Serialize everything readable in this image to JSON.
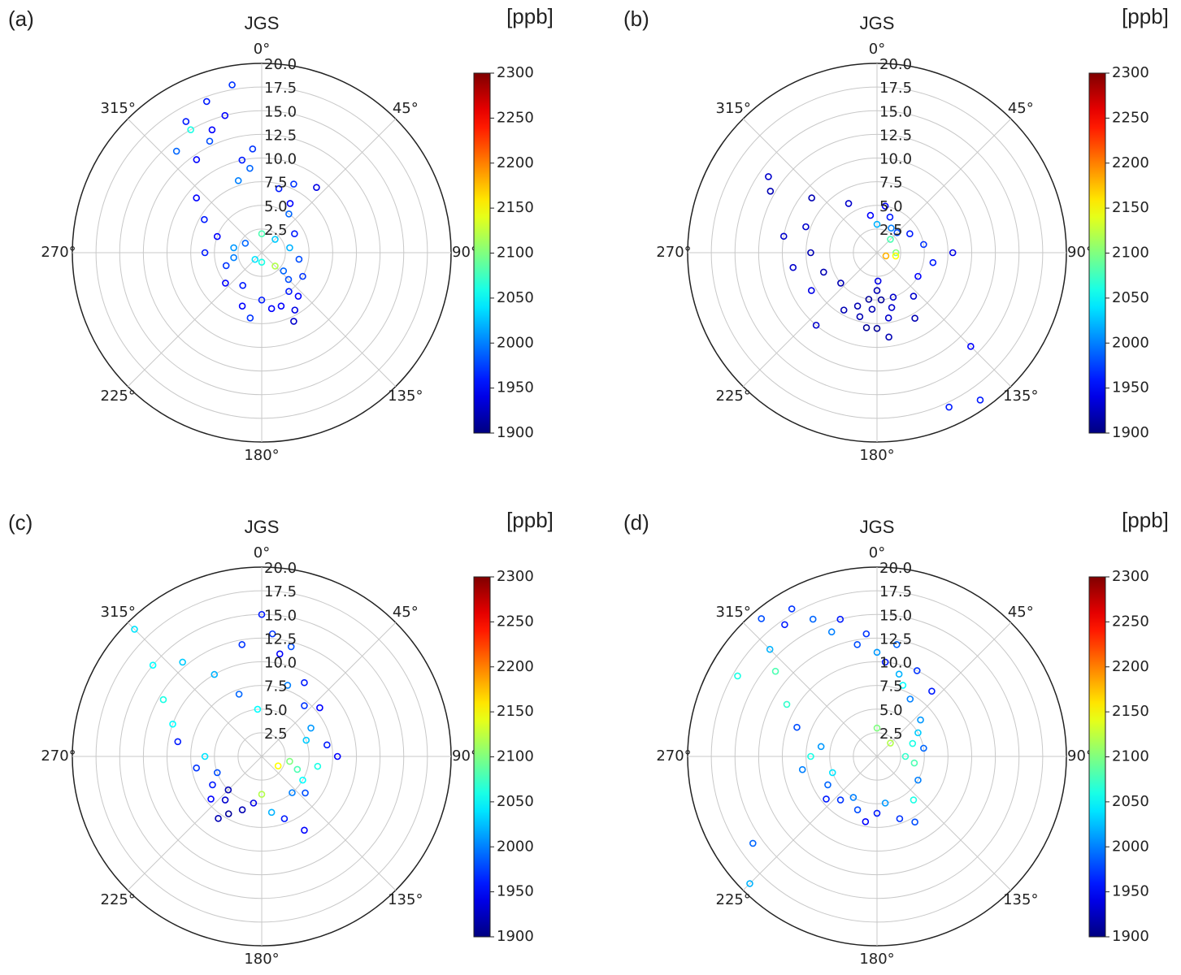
{
  "chart_data": [
    {
      "type": "polar_scatter",
      "panel_label": "(a)",
      "title": "JGS",
      "colorbar_label": "[ppb]",
      "colormap": "jet",
      "rlim": [
        0,
        20
      ],
      "rticks": [
        2.5,
        {
          "value": 5,
          "label": "5.0"
        },
        7.5,
        {
          "value": 10,
          "label": "10.0"
        },
        12.5,
        {
          "value": 15,
          "label": "15.0"
        },
        17.5,
        {
          "value": 20,
          "label": "20.0"
        }
      ],
      "thetaticks": [
        {
          "value": 0,
          "label": "0°"
        },
        {
          "value": 45,
          "label": "45°"
        },
        {
          "value": 90,
          "label": "90°"
        },
        {
          "value": 135,
          "label": "135°"
        },
        {
          "value": 180,
          "label": "180°"
        },
        {
          "value": 225,
          "label": "225°"
        },
        {
          "value": 270,
          "label": "270°"
        },
        {
          "value": 315,
          "label": "315°"
        }
      ],
      "clim": [
        1900,
        2300
      ],
      "cticks": [
        1900,
        1950,
        2000,
        2050,
        2100,
        2150,
        2200,
        2250,
        2300
      ],
      "theta": [
        340,
        345,
        350,
        335,
        330,
        320,
        325,
        355,
        352,
        348,
        342,
        338,
        15,
        25,
        30,
        40,
        35,
        60,
        80,
        100,
        120,
        140,
        150,
        145,
        155,
        160,
        135,
        130,
        170,
        180,
        190,
        200,
        210,
        230,
        250,
        270,
        290,
        300,
        310,
        280,
        260,
        0,
        45,
        135,
        180,
        225,
        300,
        330
      ],
      "r": [
        17,
        15,
        18,
        13,
        16,
        14,
        12,
        11,
        9,
        10,
        8,
        14,
        7,
        8,
        6,
        9,
        5,
        4,
        3,
        4,
        5,
        6,
        7,
        5,
        8,
        6,
        4,
        3,
        6,
        5,
        7,
        6,
        4,
        5,
        4,
        6,
        5,
        7,
        9,
        3,
        3,
        2,
        2,
        2,
        1,
        1,
        2,
        15
      ],
      "values": [
        1960,
        1950,
        1970,
        1980,
        1960,
        1990,
        1950,
        1970,
        1990,
        1960,
        2000,
        1950,
        1960,
        1970,
        1950,
        1940,
        1990,
        1960,
        2020,
        1980,
        1970,
        1950,
        1940,
        1960,
        1930,
        1950,
        1980,
        1990,
        1950,
        1960,
        1970,
        1950,
        1960,
        1950,
        1970,
        1960,
        1950,
        1960,
        1950,
        2010,
        2000,
        2080,
        2030,
        2120,
        2060,
        2040,
        1990,
        2060
      ]
    },
    {
      "type": "polar_scatter",
      "panel_label": "(b)",
      "title": "JGS",
      "colorbar_label": "[ppb]",
      "colormap": "jet",
      "rlim": [
        0,
        20
      ],
      "rticks": [
        2.5,
        {
          "value": 5,
          "label": "5.0"
        },
        7.5,
        {
          "value": 10,
          "label": "10.0"
        },
        12.5,
        {
          "value": 15,
          "label": "15.0"
        },
        17.5,
        {
          "value": 20,
          "label": "20.0"
        }
      ],
      "thetaticks": [
        {
          "value": 0,
          "label": "0°"
        },
        {
          "value": 45,
          "label": "45°"
        },
        {
          "value": 90,
          "label": "90°"
        },
        {
          "value": 135,
          "label": "135°"
        },
        {
          "value": 180,
          "label": "180°"
        },
        {
          "value": 225,
          "label": "225°"
        },
        {
          "value": 270,
          "label": "270°"
        },
        {
          "value": 315,
          "label": "315°"
        }
      ],
      "clim": [
        1900,
        2300
      ],
      "cticks": [
        1900,
        1950,
        2000,
        2050,
        2100,
        2150,
        2200,
        2250,
        2300
      ],
      "theta": [
        180,
        175,
        185,
        170,
        190,
        165,
        195,
        180,
        172,
        188,
        178,
        160,
        200,
        150,
        140,
        120,
        100,
        90,
        80,
        60,
        45,
        30,
        20,
        10,
        0,
        350,
        330,
        310,
        300,
        290,
        280,
        270,
        260,
        250,
        240,
        230,
        220,
        210,
        305,
        145,
        155,
        135,
        90,
        100,
        110,
        45
      ],
      "r": [
        4,
        5,
        6,
        7,
        5,
        6,
        7,
        8,
        9,
        8,
        3,
        5,
        6,
        8,
        6,
        5,
        6,
        8,
        5,
        4,
        3,
        3,
        4,
        5,
        3,
        4,
        6,
        9,
        13,
        8,
        10,
        7,
        9,
        6,
        8,
        5,
        10,
        7,
        14,
        19,
        18,
        14,
        2,
        2,
        1,
        2
      ],
      "values": [
        1920,
        1910,
        1920,
        1930,
        1910,
        1930,
        1920,
        1910,
        1920,
        1910,
        1940,
        1930,
        1920,
        1920,
        1930,
        1950,
        1960,
        1940,
        1970,
        1960,
        1980,
        2000,
        1960,
        1950,
        2020,
        1950,
        1930,
        1920,
        1920,
        1930,
        1930,
        1920,
        1930,
        1920,
        1940,
        1920,
        1930,
        1920,
        1930,
        1960,
        1960,
        1950,
        2100,
        2150,
        2180,
        2080
      ]
    },
    {
      "type": "polar_scatter",
      "panel_label": "(c)",
      "title": "JGS",
      "colorbar_label": "[ppb]",
      "colormap": "jet",
      "rlim": [
        0,
        20
      ],
      "rticks": [
        2.5,
        {
          "value": 5,
          "label": "5.0"
        },
        7.5,
        {
          "value": 10,
          "label": "10.0"
        },
        12.5,
        {
          "value": 15,
          "label": "15.0"
        },
        17.5,
        {
          "value": 20,
          "label": "20.0"
        }
      ],
      "thetaticks": [
        {
          "value": 0,
          "label": "0°"
        },
        {
          "value": 45,
          "label": "45°"
        },
        {
          "value": 90,
          "label": "90°"
        },
        {
          "value": 135,
          "label": "135°"
        },
        {
          "value": 180,
          "label": "180°"
        },
        {
          "value": 225,
          "label": "225°"
        },
        {
          "value": 270,
          "label": "270°"
        },
        {
          "value": 315,
          "label": "315°"
        }
      ],
      "clim": [
        1900,
        2300
      ],
      "cticks": [
        1900,
        1950,
        2000,
        2050,
        2100,
        2150,
        2200,
        2250,
        2300
      ],
      "theta": [
        0,
        5,
        10,
        15,
        20,
        30,
        40,
        50,
        60,
        70,
        80,
        90,
        100,
        110,
        120,
        130,
        140,
        150,
        160,
        170,
        180,
        190,
        200,
        210,
        215,
        220,
        225,
        230,
        240,
        250,
        260,
        270,
        280,
        290,
        300,
        310,
        315,
        320,
        330,
        340,
        350,
        355,
        120,
        100
      ],
      "r": [
        15,
        13,
        11,
        12,
        8,
        9,
        7,
        8,
        6,
        5,
        7,
        8,
        6,
        4,
        5,
        6,
        5,
        9,
        7,
        6,
        4,
        5,
        6,
        7,
        8,
        6,
        5,
        7,
        6,
        5,
        7,
        6,
        9,
        10,
        12,
        15,
        19,
        13,
        10,
        7,
        12,
        5,
        2,
        3
      ],
      "values": [
        1960,
        1970,
        1950,
        1980,
        2000,
        1960,
        1970,
        1950,
        2010,
        2030,
        1960,
        1950,
        2060,
        2080,
        2050,
        1980,
        2000,
        1950,
        1960,
        2020,
        2120,
        1940,
        1920,
        1910,
        1920,
        1930,
        1920,
        1950,
        1960,
        1980,
        1970,
        2040,
        1960,
        2050,
        2060,
        2050,
        2040,
        2030,
        2020,
        1990,
        1970,
        2050,
        2150,
        2100
      ]
    },
    {
      "type": "polar_scatter",
      "panel_label": "(d)",
      "title": "JGS",
      "colorbar_label": "[ppb]",
      "colormap": "jet",
      "rlim": [
        0,
        20
      ],
      "rticks": [
        2.5,
        {
          "value": 5,
          "label": "5.0"
        },
        7.5,
        {
          "value": 10,
          "label": "10.0"
        },
        12.5,
        {
          "value": 15,
          "label": "15.0"
        },
        17.5,
        {
          "value": 20,
          "label": "20.0"
        }
      ],
      "thetaticks": [
        {
          "value": 0,
          "label": "0°"
        },
        {
          "value": 45,
          "label": "45°"
        },
        {
          "value": 90,
          "label": "90°"
        },
        {
          "value": 135,
          "label": "135°"
        },
        {
          "value": 180,
          "label": "180°"
        },
        {
          "value": 225,
          "label": "225°"
        },
        {
          "value": 270,
          "label": "270°"
        },
        {
          "value": 315,
          "label": "315°"
        }
      ],
      "clim": [
        1900,
        2300
      ],
      "cticks": [
        1900,
        1950,
        2000,
        2050,
        2100,
        2150,
        2200,
        2250,
        2300
      ],
      "theta": [
        320,
        325,
        330,
        335,
        340,
        345,
        350,
        355,
        0,
        5,
        10,
        15,
        20,
        25,
        30,
        40,
        50,
        60,
        70,
        80,
        90,
        100,
        120,
        140,
        150,
        160,
        170,
        180,
        190,
        200,
        210,
        220,
        230,
        240,
        250,
        260,
        270,
        280,
        290,
        300,
        310,
        315,
        225,
        235,
        300,
        0,
        45
      ],
      "r": [
        19,
        17,
        18,
        16,
        14,
        15,
        12,
        13,
        11,
        10,
        12,
        9,
        8,
        10,
        7,
        9,
        6,
        5,
        4,
        5,
        3,
        4,
        5,
        6,
        8,
        7,
        5,
        6,
        7,
        6,
        5,
        6,
        7,
        6,
        5,
        8,
        7,
        6,
        9,
        11,
        14,
        16,
        19,
        16,
        17,
        3,
        2
      ],
      "values": [
        1980,
        1960,
        1970,
        1990,
        2000,
        1960,
        1980,
        1970,
        2010,
        1960,
        1990,
        2020,
        2050,
        1970,
        2000,
        1960,
        2010,
        2030,
        2060,
        1990,
        2070,
        2080,
        2000,
        2060,
        1980,
        1970,
        2010,
        1960,
        1950,
        1980,
        2000,
        1970,
        1960,
        1990,
        2040,
        2000,
        2060,
        2010,
        1980,
        2070,
        2080,
        2020,
        2020,
        1990,
        2060,
        2100,
        2120
      ]
    }
  ]
}
